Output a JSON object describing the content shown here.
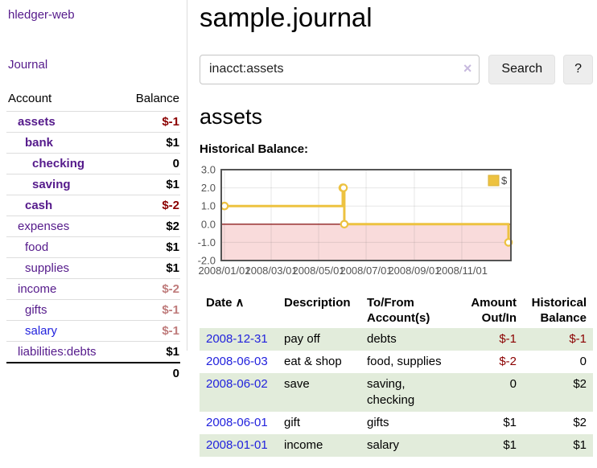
{
  "app_title": "hledger-web",
  "sidebar": {
    "journal_link": "Journal",
    "accounts": {
      "header": {
        "account": "Account",
        "balance": "Balance"
      },
      "rows": [
        {
          "name": "assets",
          "balance": "$-1",
          "indent": 1,
          "bold": true,
          "amount_color": "negative"
        },
        {
          "name": "bank",
          "balance": "$1",
          "indent": 2,
          "bold": true,
          "amount_color": "normal"
        },
        {
          "name": "checking",
          "balance": "0",
          "indent": 3,
          "bold": true,
          "amount_color": "normal"
        },
        {
          "name": "saving",
          "balance": "$1",
          "indent": 3,
          "bold": true,
          "amount_color": "normal"
        },
        {
          "name": "cash",
          "balance": "$-2",
          "indent": 2,
          "bold": true,
          "amount_color": "negative"
        },
        {
          "name": "expenses",
          "balance": "$2",
          "indent": 1,
          "bold": false,
          "amount_color": "normal"
        },
        {
          "name": "food",
          "balance": "$1",
          "indent": 2,
          "bold": false,
          "amount_color": "normal"
        },
        {
          "name": "supplies",
          "balance": "$1",
          "indent": 2,
          "bold": false,
          "amount_color": "normal"
        },
        {
          "name": "income",
          "balance": "$-2",
          "indent": 1,
          "bold": false,
          "amount_color": "negative-muted"
        },
        {
          "name": "gifts",
          "balance": "$-1",
          "indent": 2,
          "bold": false,
          "amount_color": "negative-muted"
        },
        {
          "name": "salary",
          "balance": "$-1",
          "indent": 2,
          "bold": false,
          "amount_color": "negative-muted",
          "link_color": "blue"
        },
        {
          "name": "liabilities:debts",
          "balance": "$1",
          "indent": 1,
          "bold": false,
          "amount_color": "normal"
        }
      ],
      "total": "0"
    }
  },
  "main": {
    "page_title": "sample.journal",
    "search": {
      "value": "inacct:assets",
      "clear_icon": "×",
      "search_button": "Search",
      "help_button": "?"
    },
    "account_heading": "assets",
    "section_heading": "Historical Balance:"
  },
  "chart_data": {
    "type": "line",
    "step": true,
    "title": "Historical Balance:",
    "series": [
      {
        "name": "$",
        "color": "#edc240",
        "points": [
          {
            "date": "2008-01-01",
            "day": 0,
            "value": 1
          },
          {
            "date": "2008-06-01",
            "day": 152,
            "value": 2
          },
          {
            "date": "2008-06-02",
            "day": 153,
            "value": 2
          },
          {
            "date": "2008-06-03",
            "day": 154,
            "value": 0
          },
          {
            "date": "2008-12-31",
            "day": 365,
            "value": -1
          }
        ]
      }
    ],
    "x_ticks": [
      {
        "label": "2008/01/01",
        "day": 0
      },
      {
        "label": "2008/03/01",
        "day": 60
      },
      {
        "label": "2008/05/01",
        "day": 121
      },
      {
        "label": "2008/07/01",
        "day": 182
      },
      {
        "label": "2008/09/01",
        "day": 244
      },
      {
        "label": "2008/11/01",
        "day": 305
      }
    ],
    "y_ticks": [
      {
        "label": "3.0",
        "value": 3
      },
      {
        "label": "2.0",
        "value": 2
      },
      {
        "label": "1.0",
        "value": 1
      },
      {
        "label": "0.0",
        "value": 0
      },
      {
        "label": "-1.0",
        "value": -1
      },
      {
        "label": "-2.0",
        "value": -2
      }
    ],
    "ylim": [
      -2,
      3
    ],
    "x_range_days": 365,
    "legend": {
      "label": "$",
      "position": "top-right",
      "swatch_color": "#edc240"
    },
    "grid": true,
    "colors": {
      "line": "#edc240",
      "marker_fill": "#ffffff",
      "negative_region": "#f9dbdb",
      "zero_line": "#8e1f1f",
      "border": "#545454",
      "grid": "#545454",
      "tick_text": "#545454"
    }
  },
  "register": {
    "headers": {
      "date": "Date",
      "date_sort_icon": "∧",
      "description": "Description",
      "account": "To/From Account(s)",
      "amount": "Amount Out/In",
      "balance": "Historical Balance"
    },
    "rows": [
      {
        "date": "2008-12-31",
        "description": "pay off",
        "account": "debts",
        "amount": "$-1",
        "amount_negative": true,
        "balance": "$-1",
        "balance_negative": true
      },
      {
        "date": "2008-06-03",
        "description": "eat & shop",
        "account": "food, supplies",
        "amount": "$-2",
        "amount_negative": true,
        "balance": "0",
        "balance_negative": false
      },
      {
        "date": "2008-06-02",
        "description": "save",
        "account": "saving, checking",
        "amount": "0",
        "amount_negative": false,
        "balance": "$2",
        "balance_negative": false
      },
      {
        "date": "2008-06-01",
        "description": "gift",
        "account": "gifts",
        "amount": "$1",
        "amount_negative": false,
        "balance": "$2",
        "balance_negative": false
      },
      {
        "date": "2008-01-01",
        "description": "income",
        "account": "salary",
        "amount": "$1",
        "amount_negative": false,
        "balance": "$1",
        "balance_negative": false
      }
    ]
  }
}
